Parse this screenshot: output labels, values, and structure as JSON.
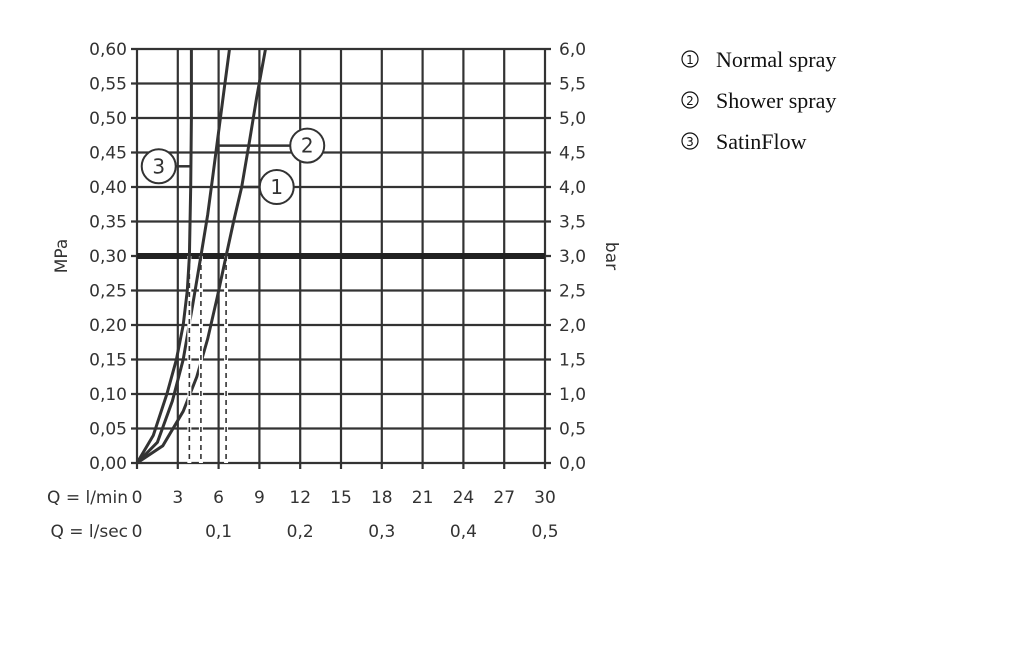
{
  "chart_data": {
    "type": "line",
    "xlabel": "Q = l/min",
    "xlabel2": "Q = l/sec",
    "ylabel": "MPa",
    "ylabel_right": "bar",
    "xlim": [
      0,
      30
    ],
    "ylim": [
      0,
      0.6
    ],
    "grid": true,
    "x_ticks": [
      "0",
      "3",
      "6",
      "9",
      "12",
      "15",
      "18",
      "21",
      "24",
      "27",
      "30"
    ],
    "x2_ticks": [
      {
        "at": 0,
        "label": "0"
      },
      {
        "at": 6,
        "label": "0,1"
      },
      {
        "at": 12,
        "label": "0,2"
      },
      {
        "at": 18,
        "label": "0,3"
      },
      {
        "at": 24,
        "label": "0,4"
      },
      {
        "at": 30,
        "label": "0,5"
      }
    ],
    "y_ticks": [
      "0,00",
      "0,05",
      "0,10",
      "0,15",
      "0,20",
      "0,25",
      "0,30",
      "0,35",
      "0,40",
      "0,45",
      "0,50",
      "0,55",
      "0,60"
    ],
    "y_right_ticks": [
      "0,0",
      "0,5",
      "1,0",
      "1,5",
      "2,0",
      "2,5",
      "3,0",
      "3,5",
      "4,0",
      "4,5",
      "5,0",
      "5,5",
      "6,0"
    ],
    "reference_line": {
      "y": 0.3
    },
    "series": [
      {
        "name": "Normal spray",
        "marker": "1",
        "label_at": [
          7.7,
          0.4
        ],
        "q_at_ref": 6.55,
        "x": [
          0,
          1.9,
          3.4,
          4.4,
          5.2,
          5.9,
          6.55,
          7.1,
          7.7,
          8.3,
          8.8,
          9.45
        ],
        "y": [
          0,
          0.025,
          0.075,
          0.125,
          0.18,
          0.24,
          0.3,
          0.35,
          0.4,
          0.47,
          0.53,
          0.6
        ]
      },
      {
        "name": "Shower spray",
        "marker": "2",
        "label_at": [
          5.9,
          0.46
        ],
        "q_at_ref": 4.7,
        "x": [
          0,
          1.5,
          2.6,
          3.4,
          4.1,
          4.7,
          5.2,
          5.6,
          6.0,
          6.4,
          6.8
        ],
        "y": [
          0,
          0.03,
          0.09,
          0.15,
          0.23,
          0.3,
          0.36,
          0.42,
          0.48,
          0.54,
          0.6
        ]
      },
      {
        "name": "SatinFlow",
        "marker": "3",
        "label_at": [
          3.95,
          0.43
        ],
        "q_at_ref": 3.85,
        "x": [
          0,
          1.2,
          2.2,
          2.9,
          3.4,
          3.7,
          3.85,
          3.95,
          4.0,
          4.0
        ],
        "y": [
          0,
          0.04,
          0.1,
          0.15,
          0.2,
          0.25,
          0.3,
          0.4,
          0.5,
          0.6
        ]
      }
    ]
  }
}
